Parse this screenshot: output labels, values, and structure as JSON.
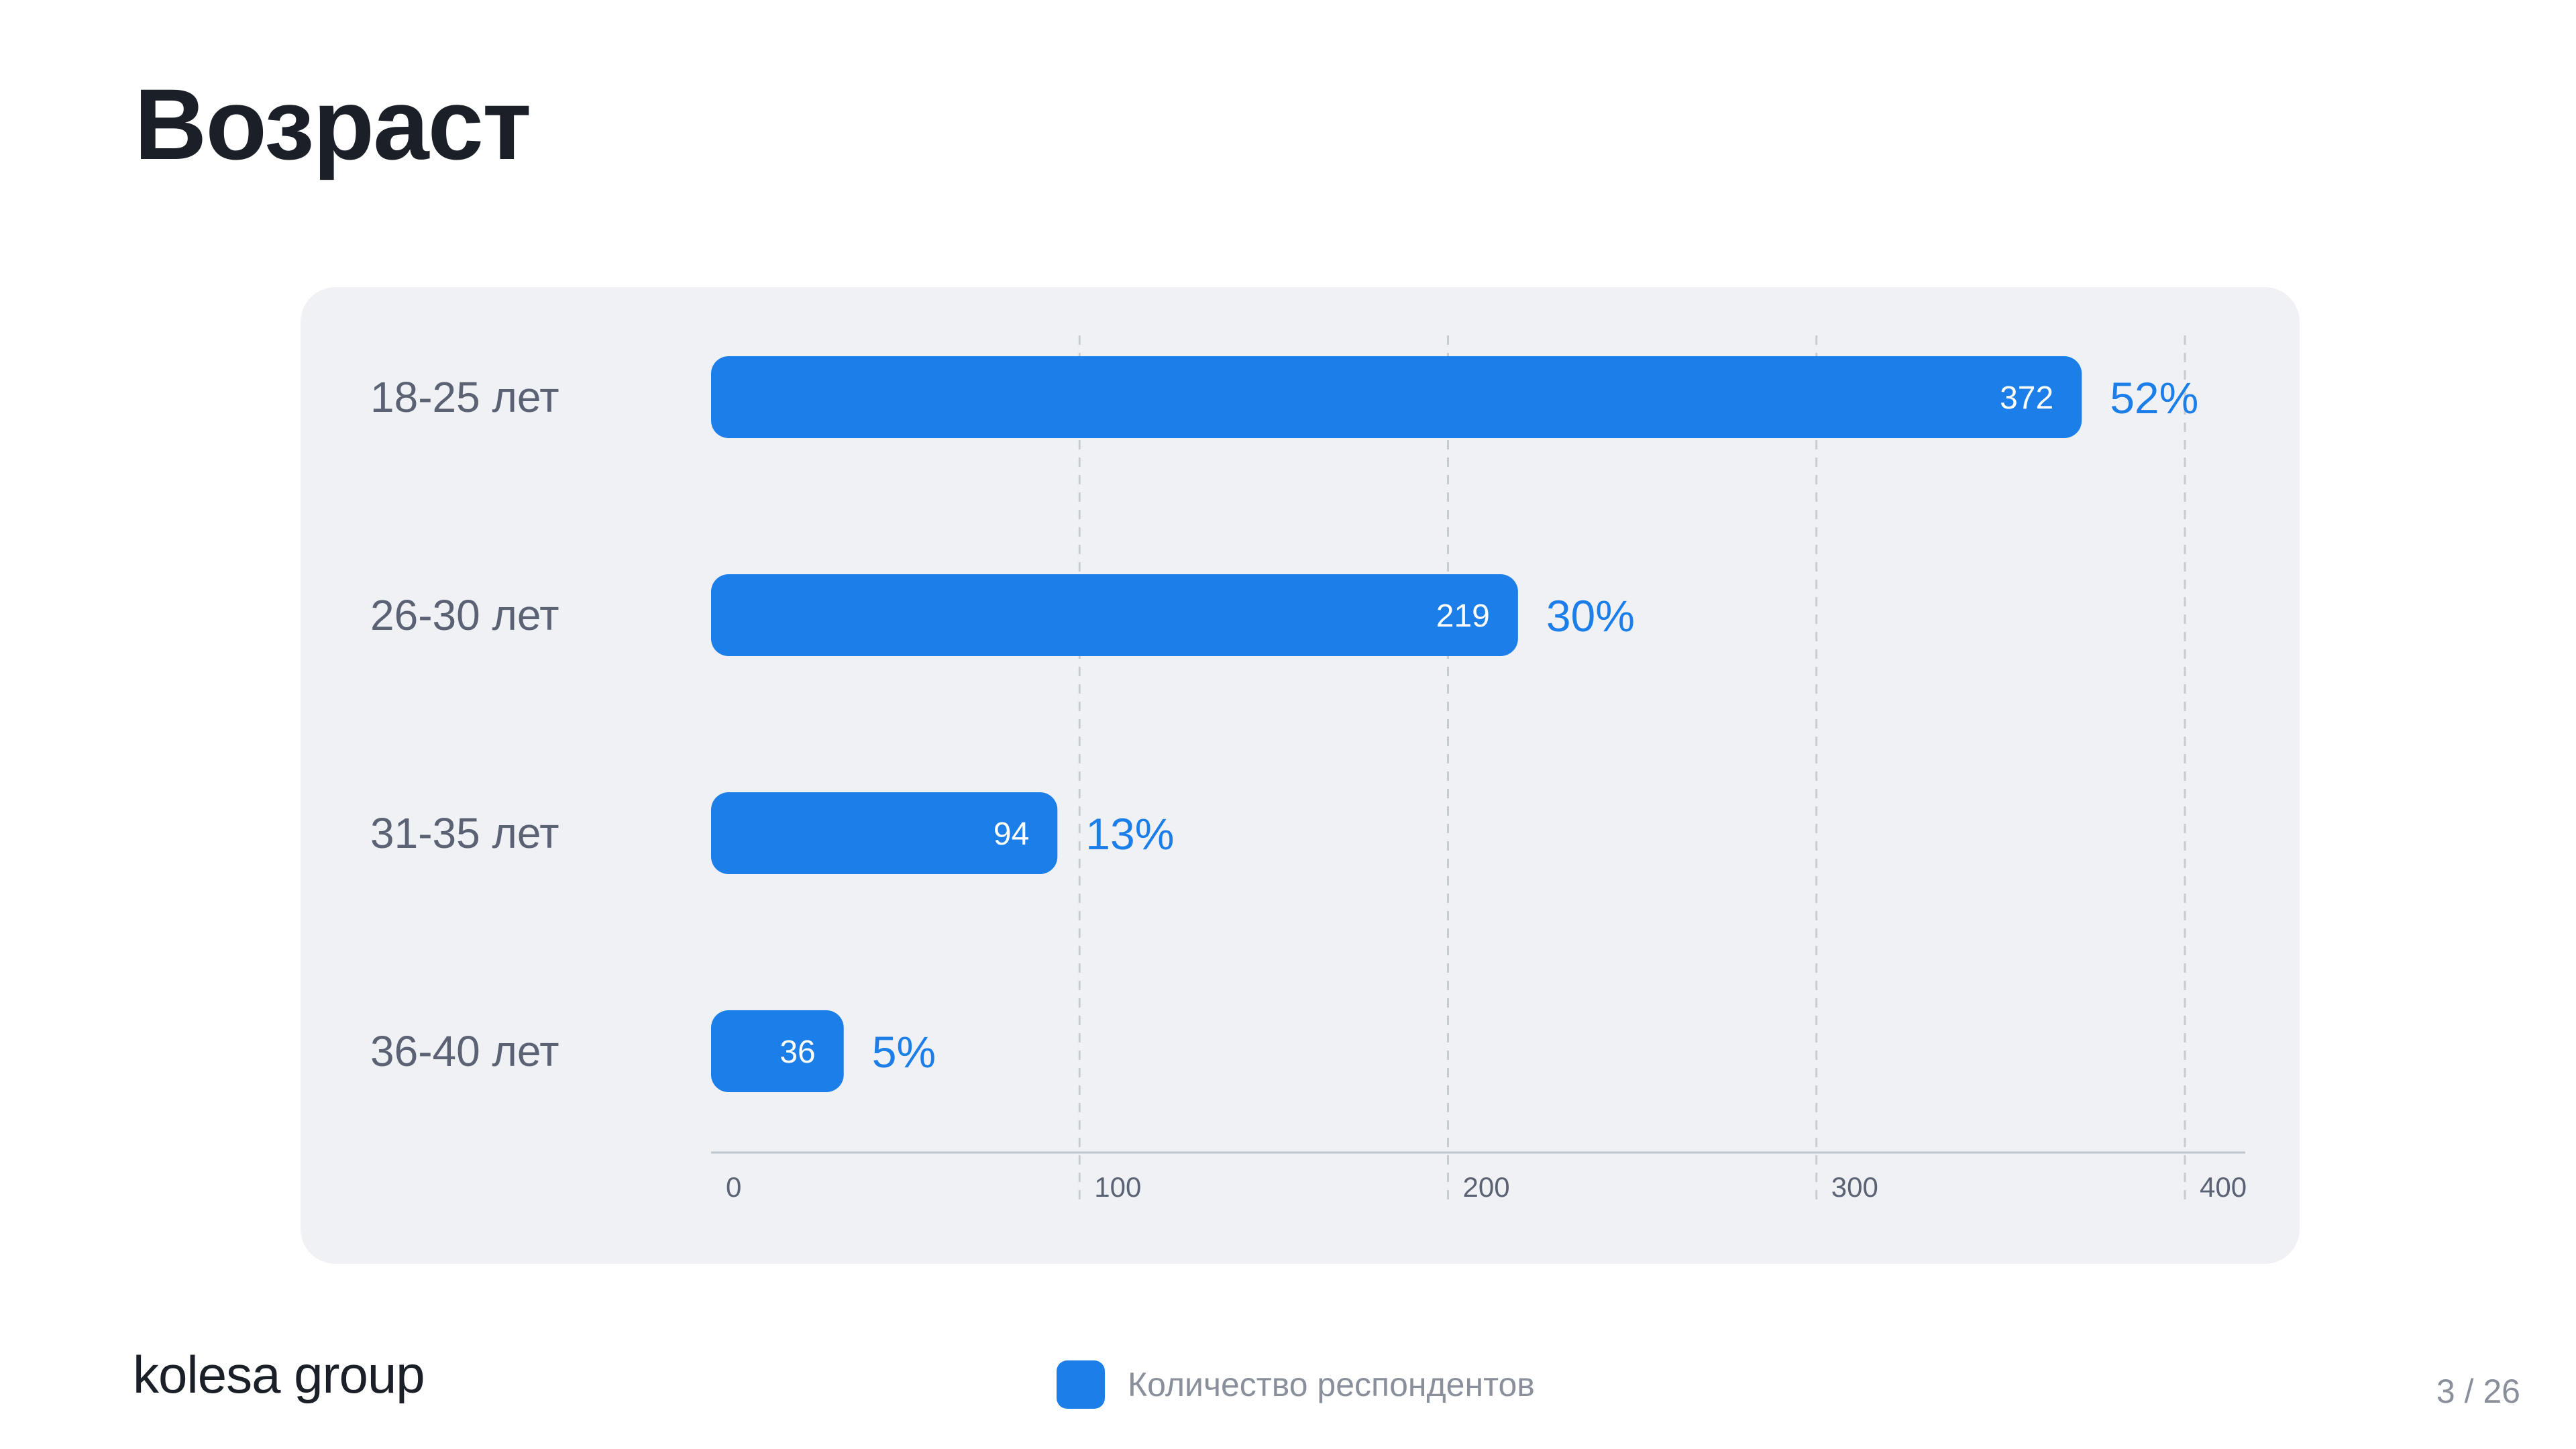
{
  "page": {
    "title": "Возраст",
    "page_indicator": "3 / 26"
  },
  "brand": {
    "logo_text": "kolesa group"
  },
  "legend": {
    "label": "Количество респондентов",
    "color": "#1b7ee9"
  },
  "colors": {
    "bar": "#1b7ee9",
    "percent_text": "#1b7ee9",
    "category_text": "#5a6273",
    "axis": "#bfc4cc",
    "grid": "#c7ccd3",
    "tick_text": "#5a6273"
  },
  "chart_data": {
    "type": "bar",
    "orientation": "horizontal",
    "categories": [
      "18-25 лет",
      "26-30 лет",
      "31-35 лет",
      "36-40 лет"
    ],
    "series": [
      {
        "name": "Количество респондентов",
        "values": [
          372,
          219,
          94,
          36
        ]
      }
    ],
    "value_labels": [
      "372",
      "219",
      "94",
      "36"
    ],
    "percent_labels": [
      "52%",
      "30%",
      "13%",
      "5%"
    ],
    "xlim": [
      0,
      400
    ],
    "xticks": [
      0,
      100,
      200,
      300,
      400
    ],
    "grid": "vertical dashed",
    "legend_position": "bottom-center"
  }
}
